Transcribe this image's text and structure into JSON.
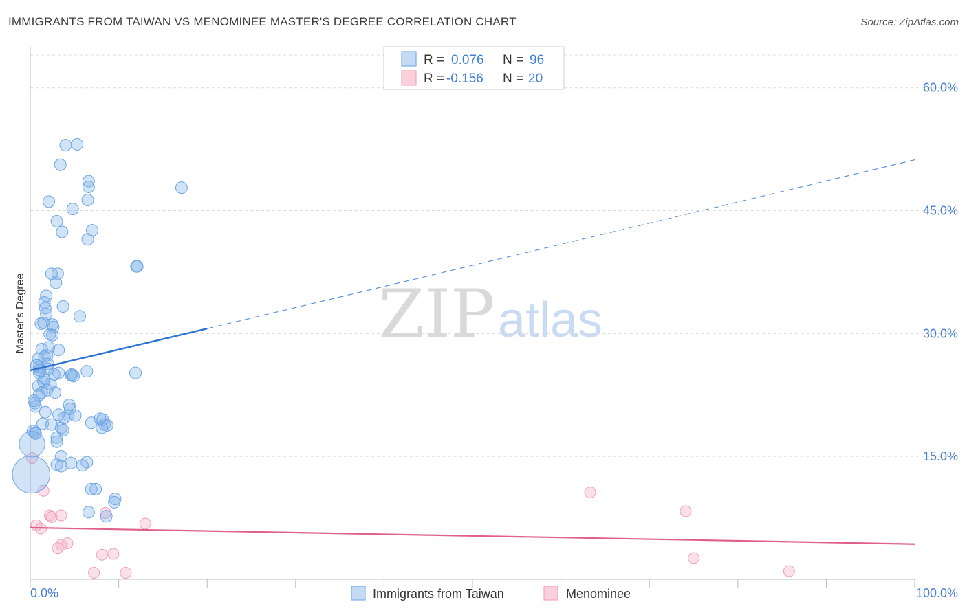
{
  "header": {
    "title": "IMMIGRANTS FROM TAIWAN VS MENOMINEE MASTER'S DEGREE CORRELATION CHART",
    "source": "Source: ZipAtlas.com"
  },
  "watermark": {
    "zip": "ZIP",
    "atlas": "atlas"
  },
  "colors": {
    "blue": "#7aaee8",
    "blue_line": "#2f74d0",
    "pink": "#f4a6bf",
    "pink_line": "#e0608a",
    "tick_label": "#4a7fd0",
    "grid": "#d8d8d8"
  },
  "stats": [
    {
      "r_label": "R =",
      "r_value": "0.076",
      "n_label": "N =",
      "n_value": "96"
    },
    {
      "r_label": "R =",
      "r_value": "-0.156",
      "n_label": "N =",
      "n_value": "20"
    }
  ],
  "chart_data": {
    "type": "scatter",
    "title": "IMMIGRANTS FROM TAIWAN VS MENOMINEE MASTER'S DEGREE CORRELATION CHART",
    "xlabel": "",
    "ylabel": "Master's Degree",
    "xlim": [
      0,
      100
    ],
    "ylim": [
      0,
      64
    ],
    "x_tick_labels": [
      "0.0%",
      "100.0%"
    ],
    "y_ticks": [
      15,
      30,
      45,
      60
    ],
    "y_tick_labels": [
      "15.0%",
      "30.0%",
      "45.0%",
      "60.0%"
    ],
    "legend": [
      "Immigrants from Taiwan",
      "Menominee"
    ],
    "series": [
      {
        "name": "Immigrants from Taiwan",
        "points": [
          [
            4.0,
            53.0
          ],
          [
            5.3,
            53.1
          ],
          [
            3.4,
            50.6
          ],
          [
            6.6,
            48.6
          ],
          [
            6.6,
            47.9
          ],
          [
            17.1,
            47.8
          ],
          [
            2.1,
            46.1
          ],
          [
            6.5,
            46.3
          ],
          [
            4.8,
            45.2
          ],
          [
            3.0,
            43.7
          ],
          [
            7.0,
            42.6
          ],
          [
            3.6,
            42.4
          ],
          [
            6.5,
            41.5
          ],
          [
            12.0,
            38.2
          ],
          [
            12.1,
            38.2
          ],
          [
            2.4,
            37.3
          ],
          [
            3.1,
            37.3
          ],
          [
            2.9,
            36.2
          ],
          [
            1.8,
            34.6
          ],
          [
            1.6,
            33.8
          ],
          [
            3.7,
            33.3
          ],
          [
            1.7,
            33.1
          ],
          [
            1.8,
            32.4
          ],
          [
            5.6,
            32.1
          ],
          [
            1.2,
            31.2
          ],
          [
            1.5,
            31.3
          ],
          [
            2.5,
            31.1
          ],
          [
            2.6,
            30.8
          ],
          [
            2.2,
            29.9
          ],
          [
            2.5,
            29.8
          ],
          [
            3.2,
            28.0
          ],
          [
            1.3,
            28.1
          ],
          [
            2.1,
            28.3
          ],
          [
            1.9,
            27.3
          ],
          [
            1.6,
            27.2
          ],
          [
            0.9,
            26.9
          ],
          [
            2.0,
            26.3
          ],
          [
            0.7,
            26.1
          ],
          [
            1.0,
            25.9
          ],
          [
            1.1,
            25.5
          ],
          [
            1.0,
            25.2
          ],
          [
            3.2,
            25.2
          ],
          [
            6.4,
            25.4
          ],
          [
            11.9,
            25.2
          ],
          [
            2.7,
            25.0
          ],
          [
            4.7,
            25.0
          ],
          [
            4.6,
            24.9
          ],
          [
            1.6,
            24.5
          ],
          [
            1.5,
            24.1
          ],
          [
            0.9,
            23.6
          ],
          [
            2.3,
            23.8
          ],
          [
            1.3,
            22.8
          ],
          [
            1.9,
            23.1
          ],
          [
            2.8,
            22.8
          ],
          [
            0.5,
            21.5
          ],
          [
            0.6,
            21.1
          ],
          [
            4.4,
            21.3
          ],
          [
            4.5,
            20.8
          ],
          [
            1.7,
            20.4
          ],
          [
            3.2,
            20.1
          ],
          [
            4.3,
            20.0
          ],
          [
            5.1,
            20.0
          ],
          [
            1.4,
            19.0
          ],
          [
            2.4,
            18.9
          ],
          [
            6.9,
            19.1
          ],
          [
            8.2,
            19.5
          ],
          [
            8.4,
            18.9
          ],
          [
            8.1,
            18.5
          ],
          [
            0.3,
            18.1
          ],
          [
            0.5,
            17.9
          ],
          [
            0.6,
            17.8
          ],
          [
            3.5,
            18.5
          ],
          [
            3.7,
            18.2
          ],
          [
            3.0,
            17.3
          ],
          [
            3.0,
            16.8
          ],
          [
            0.2,
            16.5
          ],
          [
            3.5,
            15.0
          ],
          [
            4.6,
            14.2
          ],
          [
            6.4,
            14.3
          ],
          [
            3.0,
            14.0
          ],
          [
            3.5,
            13.8
          ],
          [
            5.9,
            13.9
          ],
          [
            0.1,
            12.8
          ],
          [
            6.9,
            11.0
          ],
          [
            7.4,
            11.0
          ],
          [
            9.6,
            9.8
          ],
          [
            9.5,
            9.4
          ],
          [
            6.6,
            8.2
          ],
          [
            8.6,
            7.7
          ],
          [
            0.4,
            21.8
          ],
          [
            1.0,
            22.5
          ],
          [
            3.8,
            19.7
          ],
          [
            7.9,
            19.6
          ],
          [
            8.7,
            18.8
          ],
          [
            2.0,
            25.7
          ],
          [
            4.9,
            24.8
          ]
        ],
        "sizes": {
          "0.1,12.8": 3.2,
          "0.2,16.5": 2.2
        },
        "trend_solid": [
          [
            0,
            25.5
          ],
          [
            20,
            30.6
          ]
        ],
        "trend_dashed": [
          [
            20,
            30.6
          ],
          [
            100,
            51.2
          ]
        ]
      },
      {
        "name": "Menominee",
        "points": [
          [
            0.2,
            14.8
          ],
          [
            1.5,
            10.8
          ],
          [
            0.7,
            6.6
          ],
          [
            1.2,
            6.2
          ],
          [
            2.2,
            7.8
          ],
          [
            2.4,
            7.6
          ],
          [
            3.5,
            7.8
          ],
          [
            3.5,
            4.2
          ],
          [
            4.2,
            4.4
          ],
          [
            3.1,
            3.8
          ],
          [
            8.5,
            8.1
          ],
          [
            8.1,
            3.0
          ],
          [
            9.4,
            3.1
          ],
          [
            7.2,
            0.8
          ],
          [
            10.8,
            0.8
          ],
          [
            13.0,
            6.8
          ],
          [
            63.3,
            10.6
          ],
          [
            74.1,
            8.3
          ],
          [
            75.0,
            2.6
          ],
          [
            85.8,
            1.0
          ]
        ],
        "trend_solid": [
          [
            0,
            6.3
          ],
          [
            100,
            4.3
          ]
        ]
      }
    ]
  }
}
